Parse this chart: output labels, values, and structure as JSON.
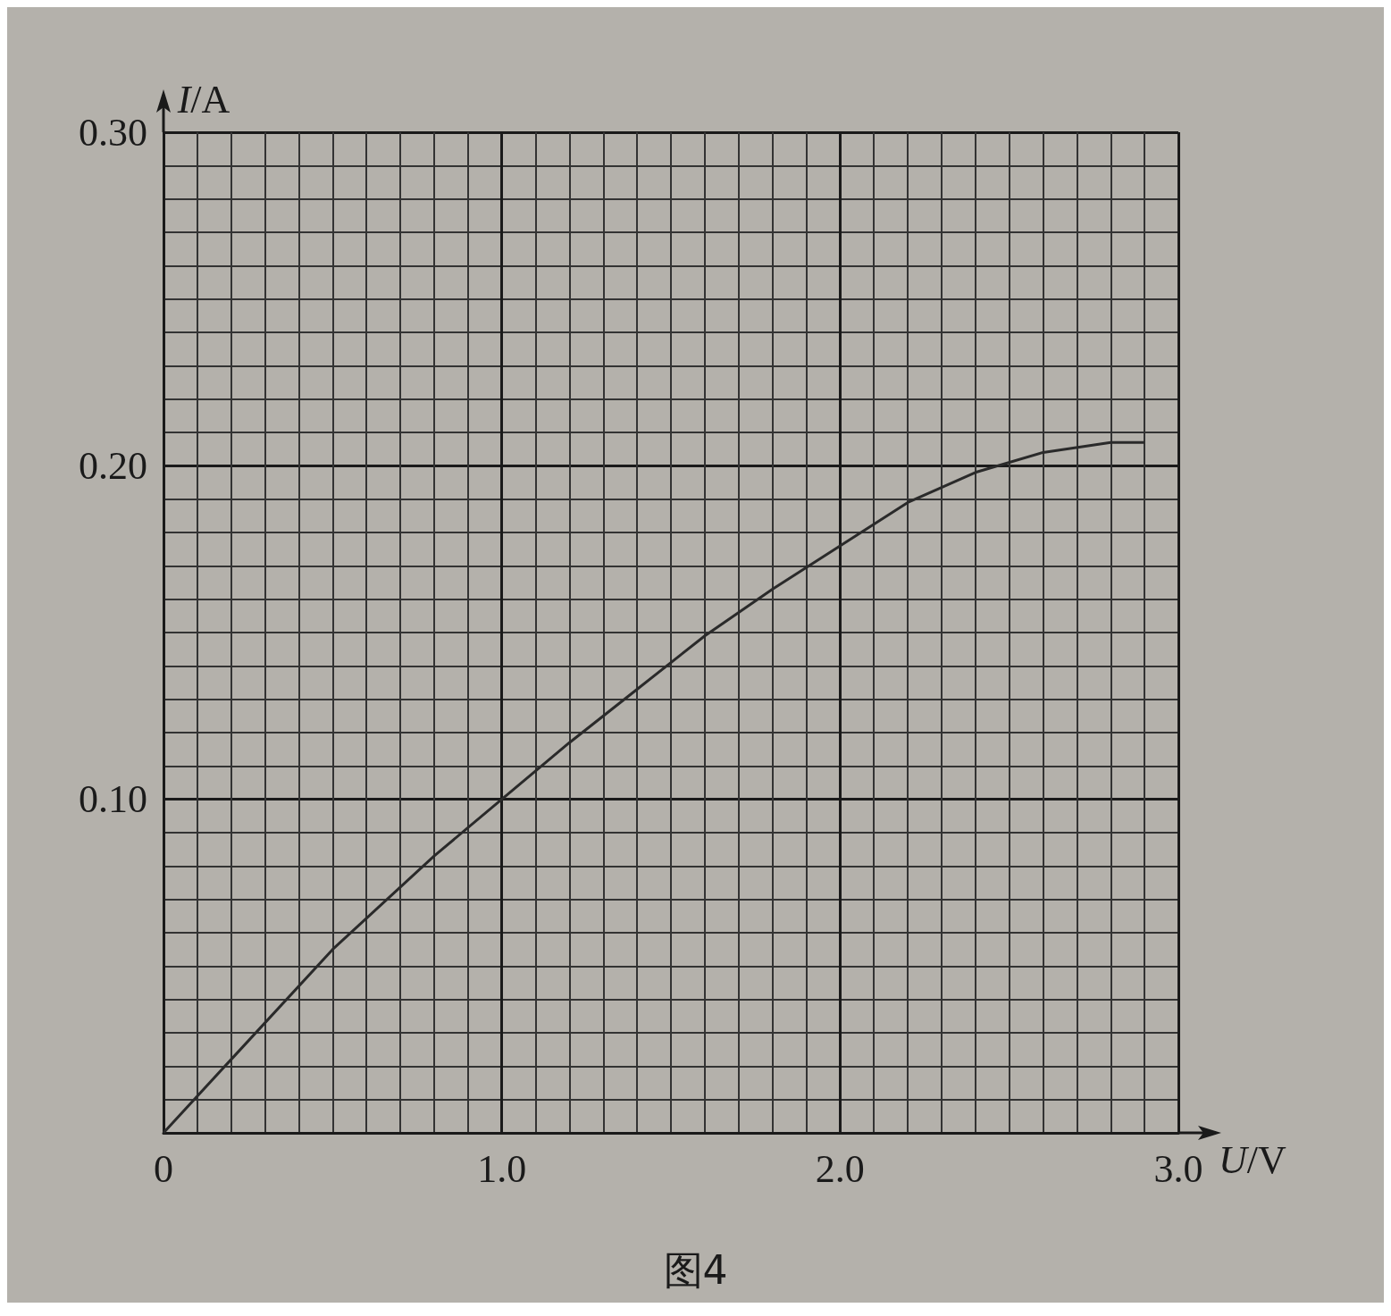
{
  "chart_data": {
    "type": "line",
    "xlabel": "U/V",
    "ylabel": "I/A",
    "annotations": [
      "图4"
    ],
    "x": [
      0,
      0.2,
      0.5,
      0.8,
      1.0,
      1.2,
      1.4,
      1.6,
      1.8,
      2.0,
      2.2,
      2.4,
      2.6,
      2.8,
      2.9
    ],
    "series": [
      {
        "color": "#2a2a2a",
        "values": [
          0,
          0.022,
          0.055,
          0.083,
          0.1,
          0.117,
          0.133,
          0.149,
          0.163,
          0.176,
          0.189,
          0.198,
          0.204,
          0.207,
          0.207
        ]
      }
    ],
    "xlim": [
      0,
      3.0
    ],
    "xticks": [
      0,
      {
        "value": 1,
        "label": "1.0"
      },
      {
        "value": 2,
        "label": "2.0"
      },
      {
        "value": 3,
        "label": "3.0"
      }
    ],
    "ylim": [
      0,
      0.3
    ],
    "yticks": [
      {
        "value": 0,
        "label": null
      },
      {
        "value": 0.1,
        "label": "0.10"
      },
      {
        "value": 0.2,
        "label": "0.20"
      },
      {
        "value": 0.3,
        "label": "0.30"
      }
    ],
    "grid": true,
    "marker": "none",
    "line_style": "solid"
  }
}
